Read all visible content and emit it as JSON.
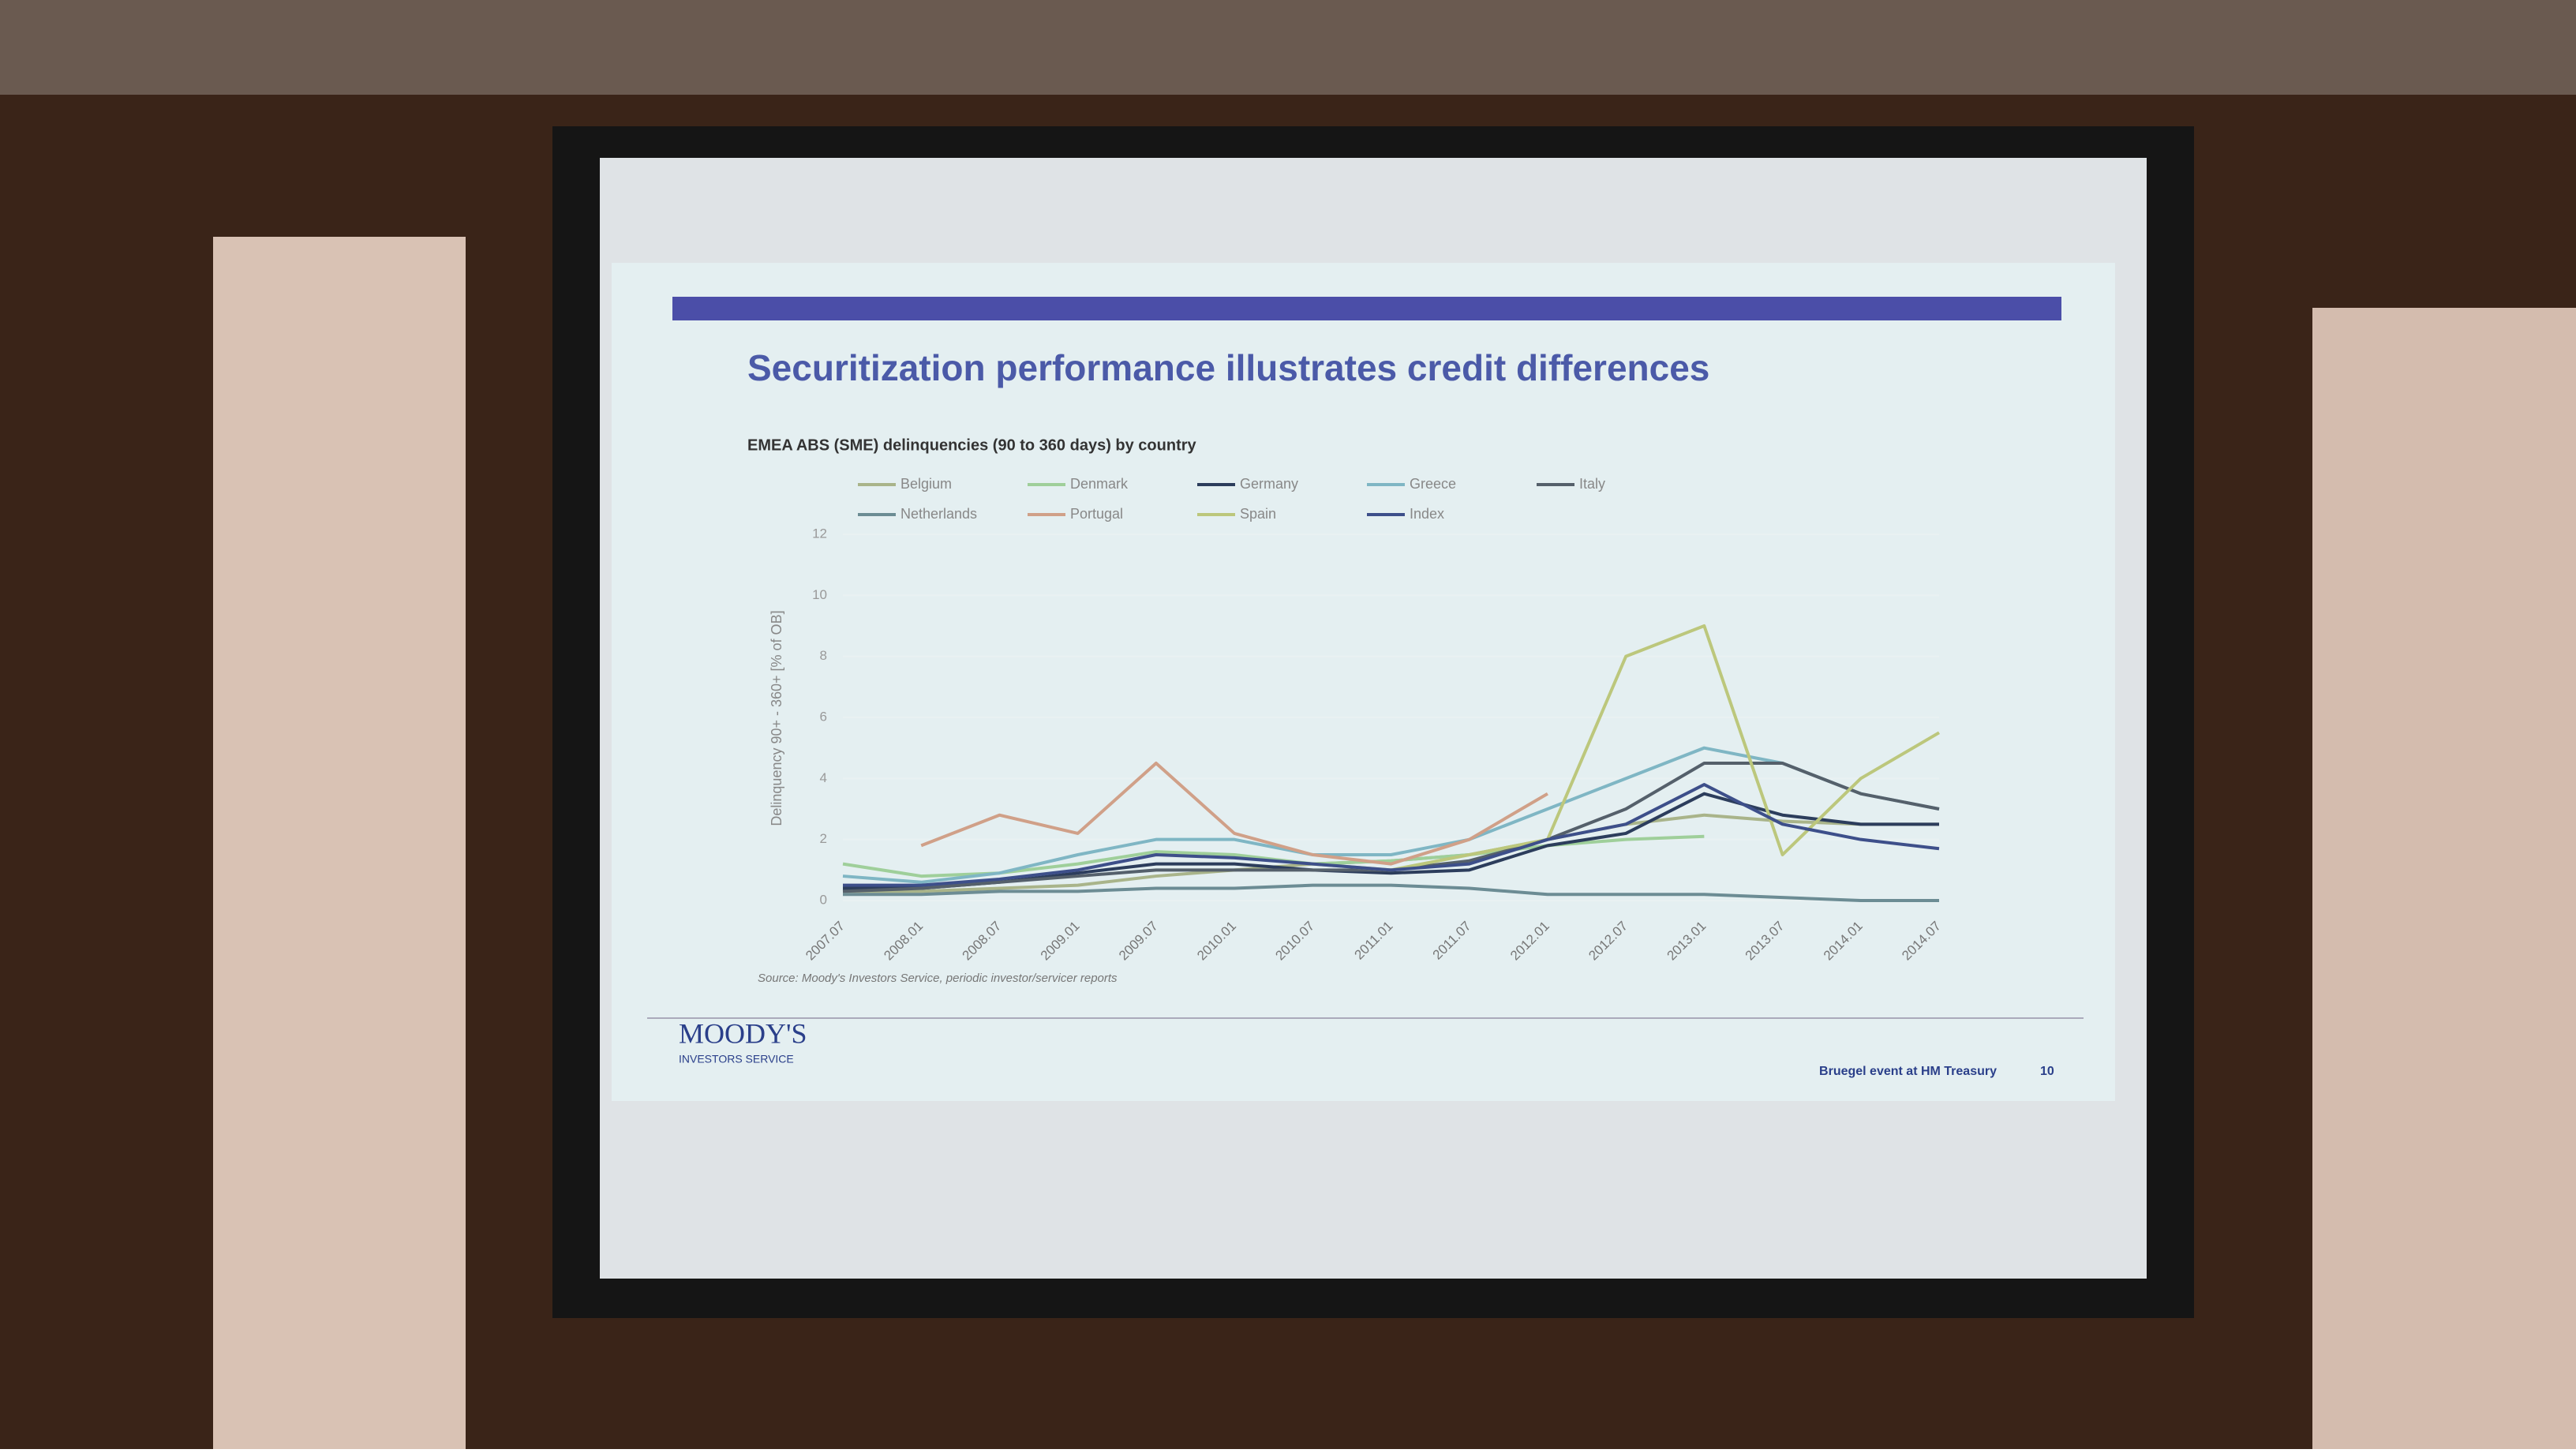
{
  "chart_data": {
    "type": "line",
    "title": "Securitization performance illustrates credit differences",
    "subtitle": "EMEA ABS (SME) delinquencies (90 to 360 days) by country",
    "ylabel": "Delinquency 90+ - 360+ [% of OB]",
    "source": "Source: Moody's Investors Service, periodic investor/servicer reports",
    "categories": [
      "2007.07",
      "2008.01",
      "2008.07",
      "2009.01",
      "2009.07",
      "2010.01",
      "2010.07",
      "2011.01",
      "2011.07",
      "2012.01",
      "2012.07",
      "2013.01",
      "2013.07",
      "2014.01",
      "2014.07"
    ],
    "ylim": [
      0,
      12
    ],
    "yticks": [
      0,
      2,
      4,
      6,
      8,
      10,
      12
    ],
    "series": [
      {
        "name": "Belgium",
        "color": "#a9b48a",
        "values": [
          0.3,
          0.3,
          0.4,
          0.5,
          0.8,
          1.0,
          1.2,
          1.3,
          1.5,
          2.0,
          2.5,
          2.8,
          2.6,
          2.5,
          2.5
        ]
      },
      {
        "name": "Denmark",
        "color": "#9fcf9a",
        "values": [
          1.2,
          0.8,
          0.9,
          1.2,
          1.6,
          1.5,
          1.2,
          1.3,
          1.5,
          1.8,
          2.0,
          2.1,
          null,
          null,
          null
        ]
      },
      {
        "name": "Germany",
        "color": "#2c3d5c",
        "values": [
          0.4,
          0.4,
          0.6,
          0.9,
          1.2,
          1.2,
          1.0,
          0.9,
          1.0,
          1.8,
          2.2,
          3.5,
          2.8,
          2.5,
          2.5
        ]
      },
      {
        "name": "Greece",
        "color": "#7fb6c4",
        "values": [
          0.8,
          0.6,
          0.9,
          1.5,
          2.0,
          2.0,
          1.5,
          1.5,
          2.0,
          3.0,
          4.0,
          5.0,
          4.5,
          3.5,
          3.0
        ]
      },
      {
        "name": "Italy",
        "color": "#55606b",
        "values": [
          0.3,
          0.4,
          0.6,
          0.8,
          1.0,
          1.0,
          1.0,
          1.0,
          1.3,
          2.0,
          3.0,
          4.5,
          4.5,
          3.5,
          3.0
        ]
      },
      {
        "name": "Netherlands",
        "color": "#6c8c94",
        "values": [
          0.2,
          0.2,
          0.3,
          0.3,
          0.4,
          0.4,
          0.5,
          0.5,
          0.4,
          0.2,
          0.2,
          0.2,
          0.1,
          0.0,
          0.0
        ]
      },
      {
        "name": "Portugal",
        "color": "#d0a088",
        "values": [
          null,
          1.8,
          2.8,
          2.2,
          4.5,
          2.2,
          1.5,
          1.2,
          2.0,
          3.5,
          null,
          null,
          null,
          null,
          null
        ]
      },
      {
        "name": "Spain",
        "color": "#bcc77c",
        "values": [
          null,
          null,
          null,
          null,
          null,
          null,
          1.2,
          1.0,
          1.5,
          2.0,
          8.0,
          9.0,
          1.5,
          4.0,
          5.5
        ]
      },
      {
        "name": "Index",
        "color": "#3d4f8a",
        "values": [
          0.5,
          0.5,
          0.7,
          1.0,
          1.5,
          1.4,
          1.2,
          1.0,
          1.2,
          2.0,
          2.5,
          3.8,
          2.5,
          2.0,
          1.7
        ]
      }
    ]
  },
  "footer": {
    "logo": "MOODY'S",
    "logo_sub": "INVESTORS SERVICE",
    "event": "Bruegel event at HM Treasury",
    "page": "10"
  }
}
